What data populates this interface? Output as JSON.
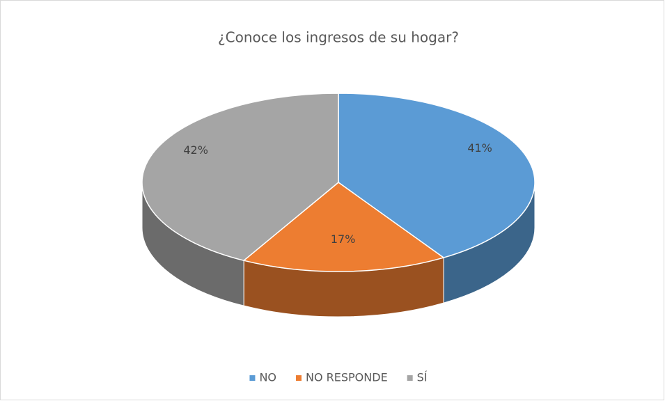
{
  "chart_data": {
    "type": "pie3d",
    "title": "¿Conoce los ingresos de su hogar?",
    "categories": [
      "NO",
      "NO RESPONDE",
      "SÍ"
    ],
    "values": [
      41,
      17,
      42
    ],
    "value_labels": [
      "41%",
      "17%",
      "42%"
    ],
    "colors": [
      "#5b9bd5",
      "#ed7d31",
      "#a5a5a5"
    ],
    "legend": "bottom"
  }
}
